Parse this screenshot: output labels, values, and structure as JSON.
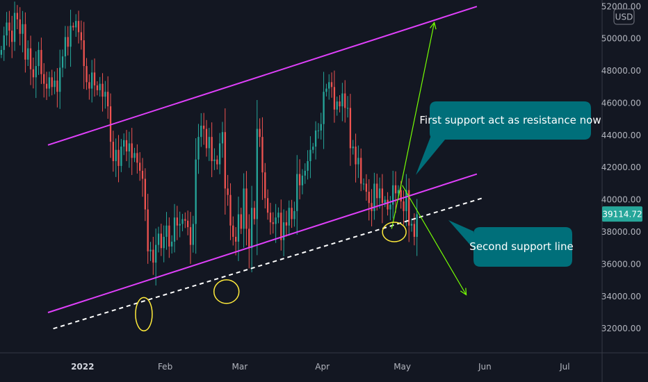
{
  "chart_data": {
    "type": "candlestick",
    "currency": "USD",
    "price_ticks": [
      "52000.00",
      "50000.00",
      "48000.00",
      "46000.00",
      "44000.00",
      "42000.00",
      "40000.00",
      "38000.00",
      "36000.00",
      "34000.00",
      "32000.00"
    ],
    "price_tick_values": [
      52000,
      50000,
      48000,
      46000,
      44000,
      42000,
      40000,
      38000,
      36000,
      34000,
      32000
    ],
    "time_ticks": [
      {
        "label": "2022",
        "date": "2022-01-01",
        "bold": true
      },
      {
        "label": "Feb",
        "date": "2022-02-01",
        "bold": false
      },
      {
        "label": "Mar",
        "date": "2022-03-01",
        "bold": false
      },
      {
        "label": "Apr",
        "date": "2022-04-01",
        "bold": false
      },
      {
        "label": "May",
        "date": "2022-05-01",
        "bold": false
      },
      {
        "label": "Jun",
        "date": "2022-06-01",
        "bold": false
      },
      {
        "label": "Jul",
        "date": "2022-07-01",
        "bold": false
      }
    ],
    "x_range": [
      "2021-12-01",
      "2022-07-15"
    ],
    "y_range": [
      30500,
      52400
    ],
    "last_price": "39114.72",
    "last_price_value": 39114.72,
    "colors": {
      "up": "#26a69a",
      "down": "#ef5350",
      "channel": "#e040fb",
      "support": "#ffffff",
      "projection": "#76ff03",
      "ellipse": "#ffeb3b",
      "callout": "#006f7a",
      "price_tag": "#26a69a"
    },
    "closes": [
      49300,
      50200,
      51000,
      50500,
      49800,
      51600,
      51200,
      50300,
      50900,
      48700,
      49400,
      48100,
      47600,
      48300,
      49300,
      47800,
      47200,
      46900,
      47600,
      47000,
      47400,
      46700,
      48200,
      48900,
      50100,
      49500,
      50800,
      50700,
      51100,
      50400,
      49900,
      48300,
      47300,
      46900,
      47900,
      47100,
      46800,
      47200,
      46400,
      46700,
      45800,
      43600,
      42400,
      43100,
      42100,
      43300,
      43700,
      43000,
      43500,
      42600,
      42900,
      42300,
      41800,
      41300,
      39400,
      36800,
      36900,
      36100,
      37200,
      37900,
      37000,
      37700,
      38400,
      37100,
      37400,
      38900,
      38400,
      38500,
      38800,
      38700,
      38300,
      37200,
      38500,
      42500,
      43900,
      44600,
      44400,
      43200,
      43900,
      42400,
      42500,
      42200,
      43500,
      44200,
      40700,
      40300,
      38400,
      37700,
      37400,
      39100,
      38200,
      40700,
      38200,
      37000,
      39500,
      38800,
      44400,
      43900,
      41700,
      40100,
      39200,
      38600,
      38500,
      38900,
      39200,
      37500,
      38600,
      38400,
      39500,
      38800,
      39300,
      41600,
      40900,
      41500,
      41800,
      42400,
      43100,
      43300,
      44300,
      44300,
      44700,
      46700,
      46900,
      47300,
      47000,
      45600,
      46100,
      45800,
      46600,
      45700,
      45700,
      43200,
      43300,
      42200,
      42600,
      41000,
      41000,
      40500,
      39800,
      39300,
      41000,
      40100,
      40700,
      39800,
      40000,
      39400,
      39700,
      40900,
      40400,
      40600,
      39900,
      39300,
      40600,
      38400,
      38500,
      37700,
      39100
    ],
    "channel_upper": {
      "start": {
        "date": "2021-12-19",
        "price": 43400
      },
      "end": {
        "date": "2022-05-29",
        "price": 52000
      }
    },
    "channel_lower": {
      "start": {
        "date": "2021-12-19",
        "price": 33000
      },
      "end": {
        "date": "2022-05-29",
        "price": 41600
      }
    },
    "support_line": {
      "start": {
        "date": "2021-12-21",
        "price": 32000
      },
      "end": {
        "date": "2022-05-31",
        "price": 40100
      }
    },
    "projection": [
      {
        "from": {
          "date": "2022-05-01",
          "price": 41300
        },
        "to": {
          "date": "2022-05-13",
          "price": 51000
        }
      },
      {
        "from": {
          "date": "2022-05-01",
          "price": 40900
        },
        "to": {
          "date": "2022-05-25",
          "price": 34100
        }
      }
    ],
    "ellipses": [
      {
        "date": "2022-01-24",
        "price": 32900
      },
      {
        "date": "2022-02-24",
        "price": 34300
      },
      {
        "date": "2022-04-28",
        "price": 38000
      }
    ],
    "annotations": [
      {
        "id": "note1",
        "text": "First support act as resistance now",
        "anchor": {
          "date": "2022-05-01",
          "price": 40900
        }
      },
      {
        "id": "note2",
        "text": "Second support line",
        "anchor": {
          "date": "2022-05-07",
          "price": 38800
        }
      }
    ]
  }
}
